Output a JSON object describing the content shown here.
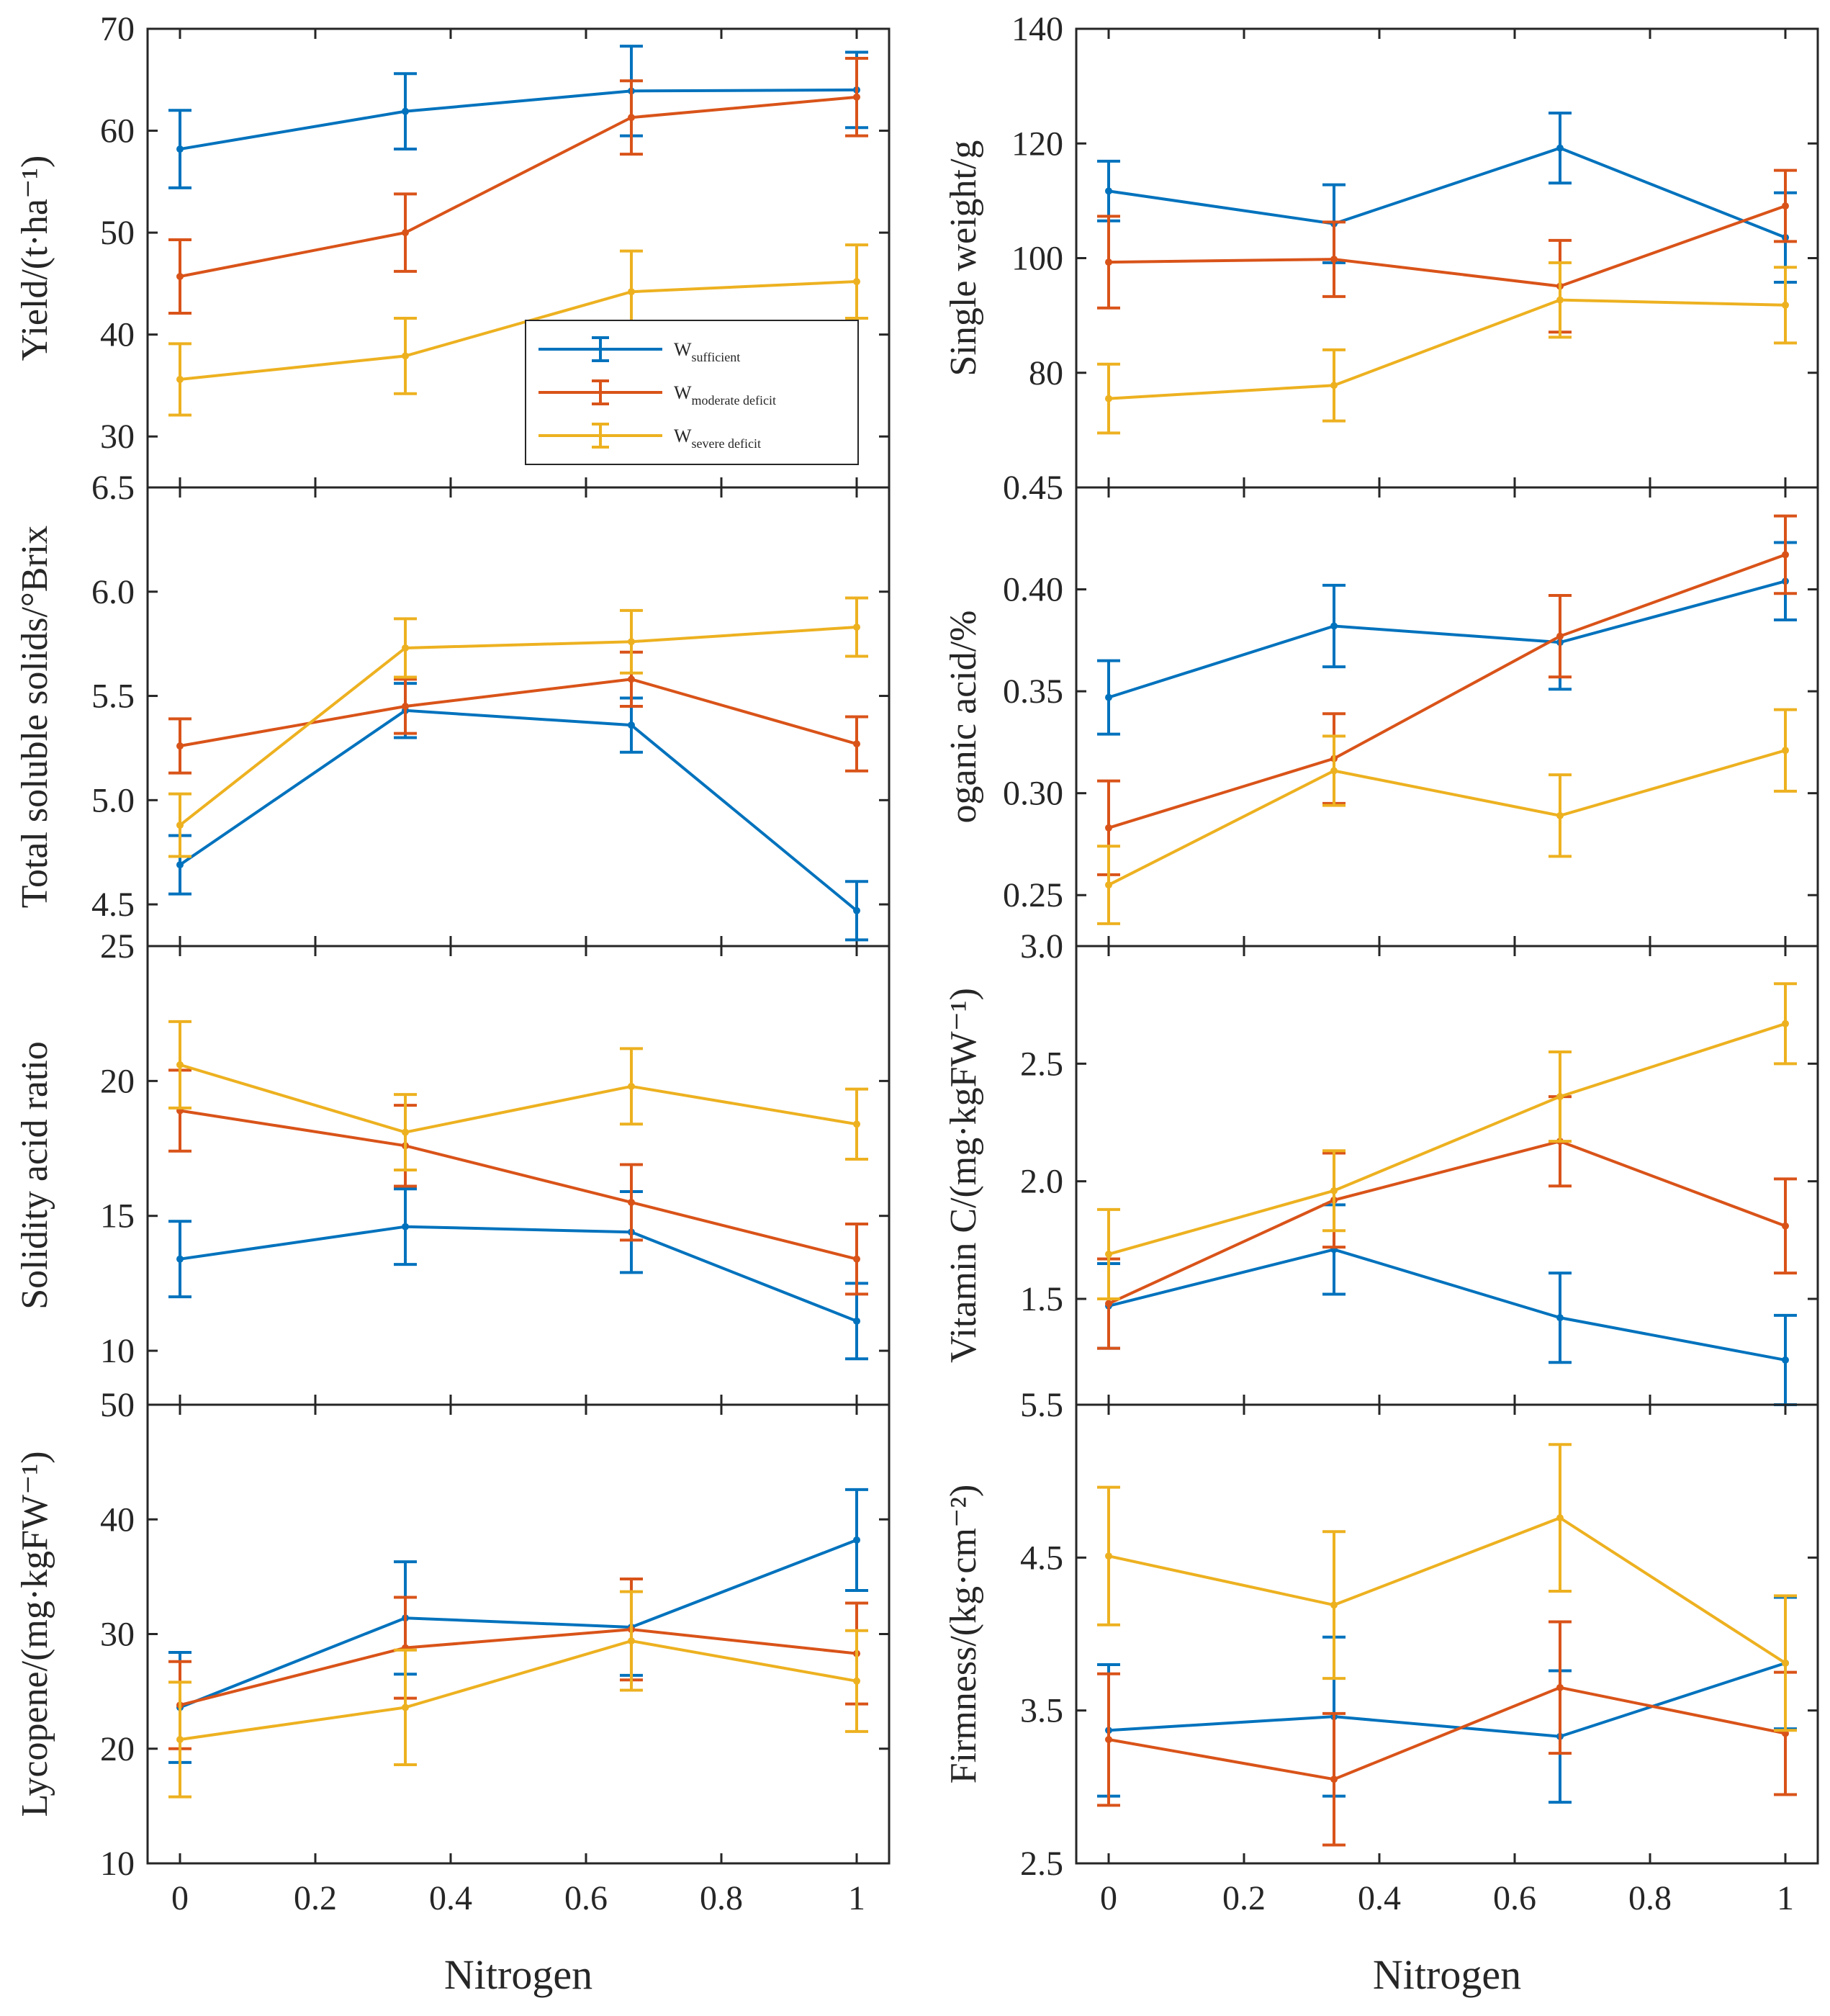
{
  "figure": {
    "x_label": "Nitrogen",
    "x_ticks": [
      0,
      0.2,
      0.4,
      0.6,
      0.8,
      1
    ],
    "colors": {
      "sufficient": "#0072bd",
      "moderate": "#d95319",
      "severe": "#edb120"
    },
    "legend": [
      {
        "key": "sufficient",
        "main": "W",
        "sub": "sufficient"
      },
      {
        "key": "moderate",
        "main": "W",
        "sub": "moderate deficit"
      },
      {
        "key": "severe",
        "main": "W",
        "sub": "severe deficit"
      }
    ]
  },
  "chart_data": [
    {
      "id": "yield",
      "type": "line",
      "ylabel": "Yield/(t·ha⁻¹)",
      "ylim": [
        25,
        70
      ],
      "y_ticks": [
        30,
        40,
        50,
        60,
        70
      ],
      "x": [
        0,
        0.333,
        0.667,
        1
      ],
      "series": [
        {
          "key": "sufficient",
          "values": [
            58.2,
            61.9,
            63.9,
            64.0
          ],
          "err": [
            3.8,
            3.7,
            4.4,
            3.7
          ]
        },
        {
          "key": "moderate",
          "values": [
            45.7,
            50.0,
            61.3,
            63.3
          ],
          "err": [
            3.6,
            3.8,
            3.6,
            3.8
          ]
        },
        {
          "key": "severe",
          "values": [
            35.6,
            37.9,
            44.2,
            45.2
          ],
          "err": [
            3.5,
            3.7,
            4.0,
            3.6
          ]
        }
      ]
    },
    {
      "id": "single_weight",
      "type": "line",
      "ylabel": "Single weight/g",
      "ylim": [
        60,
        140
      ],
      "y_ticks": [
        80,
        100,
        120,
        140
      ],
      "x": [
        0,
        0.333,
        0.667,
        1
      ],
      "series": [
        {
          "key": "sufficient",
          "values": [
            111.7,
            106.0,
            119.2,
            103.6
          ],
          "err": [
            5.2,
            6.8,
            6.1,
            7.8
          ]
        },
        {
          "key": "moderate",
          "values": [
            99.3,
            99.8,
            95.1,
            109.1
          ],
          "err": [
            8.0,
            6.5,
            8.0,
            6.2
          ]
        },
        {
          "key": "severe",
          "values": [
            75.5,
            77.8,
            92.7,
            91.8
          ],
          "err": [
            6.0,
            6.2,
            6.5,
            6.6
          ]
        }
      ]
    },
    {
      "id": "tss",
      "type": "line",
      "ylabel": "Total soluble solids/°Brix",
      "ylim": [
        4.3,
        6.5
      ],
      "y_ticks": [
        4.5,
        5.0,
        5.5,
        6.0,
        6.5
      ],
      "y_tick_labels": [
        "4.5",
        "5.0",
        "5.5",
        "6.0",
        "6.5"
      ],
      "x": [
        0,
        0.333,
        0.667,
        1
      ],
      "series": [
        {
          "key": "sufficient",
          "values": [
            4.69,
            5.43,
            5.36,
            4.47
          ],
          "err": [
            0.14,
            0.13,
            0.13,
            0.14
          ]
        },
        {
          "key": "moderate",
          "values": [
            5.26,
            5.45,
            5.58,
            5.27
          ],
          "err": [
            0.13,
            0.13,
            0.13,
            0.13
          ]
        },
        {
          "key": "severe",
          "values": [
            4.88,
            5.73,
            5.76,
            5.83
          ],
          "err": [
            0.15,
            0.14,
            0.15,
            0.14
          ]
        }
      ]
    },
    {
      "id": "organic_acid",
      "type": "line",
      "ylabel": "oganic acid/%",
      "ylim": [
        0.225,
        0.45
      ],
      "y_ticks": [
        0.25,
        0.3,
        0.35,
        0.4,
        0.45
      ],
      "y_tick_labels": [
        "0.25",
        "0.30",
        "0.35",
        "0.40",
        "0.45"
      ],
      "x": [
        0,
        0.333,
        0.667,
        1
      ],
      "series": [
        {
          "key": "sufficient",
          "values": [
            0.347,
            0.382,
            0.374,
            0.404
          ],
          "err": [
            0.018,
            0.02,
            0.023,
            0.019
          ]
        },
        {
          "key": "moderate",
          "values": [
            0.283,
            0.317,
            0.377,
            0.417
          ],
          "err": [
            0.023,
            0.022,
            0.02,
            0.019
          ]
        },
        {
          "key": "severe",
          "values": [
            0.255,
            0.311,
            0.289,
            0.321
          ],
          "err": [
            0.019,
            0.017,
            0.02,
            0.02
          ]
        }
      ]
    },
    {
      "id": "sa_ratio",
      "type": "line",
      "ylabel": "Solidity acid ratio",
      "ylim": [
        8,
        25
      ],
      "y_ticks": [
        10,
        15,
        20,
        25
      ],
      "x": [
        0,
        0.333,
        0.667,
        1
      ],
      "series": [
        {
          "key": "sufficient",
          "values": [
            13.4,
            14.6,
            14.4,
            11.1
          ],
          "err": [
            1.4,
            1.4,
            1.5,
            1.4
          ]
        },
        {
          "key": "moderate",
          "values": [
            18.9,
            17.6,
            15.5,
            13.4
          ],
          "err": [
            1.5,
            1.5,
            1.4,
            1.3
          ]
        },
        {
          "key": "severe",
          "values": [
            20.6,
            18.1,
            19.8,
            18.4
          ],
          "err": [
            1.6,
            1.4,
            1.4,
            1.3
          ]
        }
      ]
    },
    {
      "id": "vitamin_c",
      "type": "line",
      "ylabel": "Vitamin C/(mg·kgFW⁻¹)",
      "ylim": [
        1.05,
        3.0
      ],
      "y_ticks": [
        1.5,
        2.0,
        2.5,
        3.0
      ],
      "y_tick_labels": [
        "1.5",
        "2.0",
        "2.5",
        "3.0"
      ],
      "x": [
        0,
        0.333,
        0.667,
        1
      ],
      "series": [
        {
          "key": "sufficient",
          "values": [
            1.47,
            1.71,
            1.42,
            1.24
          ],
          "err": [
            0.18,
            0.19,
            0.19,
            0.19
          ]
        },
        {
          "key": "moderate",
          "values": [
            1.48,
            1.92,
            2.17,
            1.81
          ],
          "err": [
            0.19,
            0.2,
            0.19,
            0.2
          ]
        },
        {
          "key": "severe",
          "values": [
            1.69,
            1.96,
            2.36,
            2.67
          ],
          "err": [
            0.19,
            0.17,
            0.19,
            0.17
          ]
        }
      ]
    },
    {
      "id": "lycopene",
      "type": "line",
      "ylabel": "Lycopene/(mg·kgFW⁻¹)",
      "ylim": [
        10,
        50
      ],
      "y_ticks": [
        10,
        20,
        30,
        40,
        50
      ],
      "x": [
        0,
        0.333,
        0.667,
        1
      ],
      "series": [
        {
          "key": "sufficient",
          "values": [
            23.6,
            31.4,
            30.6,
            38.2
          ],
          "err": [
            4.8,
            4.9,
            4.2,
            4.4
          ]
        },
        {
          "key": "moderate",
          "values": [
            23.8,
            28.8,
            30.4,
            28.3
          ],
          "err": [
            3.8,
            4.4,
            4.4,
            4.4
          ]
        },
        {
          "key": "severe",
          "values": [
            20.8,
            23.6,
            29.4,
            25.9
          ],
          "err": [
            5.0,
            5.0,
            4.3,
            4.4
          ]
        }
      ]
    },
    {
      "id": "firmness",
      "type": "line",
      "ylabel": "Firmness/(kg·cm⁻²)",
      "ylim": [
        2.5,
        5.5
      ],
      "y_ticks": [
        2.5,
        3.5,
        4.5,
        5.5
      ],
      "y_tick_labels": [
        "2.5",
        "3.5",
        "4.5",
        "5.5"
      ],
      "x": [
        0,
        0.333,
        0.667,
        1
      ],
      "series": [
        {
          "key": "sufficient",
          "values": [
            3.37,
            3.46,
            3.33,
            3.81
          ],
          "err": [
            0.43,
            0.52,
            0.43,
            0.43
          ]
        },
        {
          "key": "moderate",
          "values": [
            3.31,
            3.05,
            3.65,
            3.35
          ],
          "err": [
            0.43,
            0.43,
            0.43,
            0.4
          ]
        },
        {
          "key": "severe",
          "values": [
            4.51,
            4.19,
            4.76,
            3.81
          ],
          "err": [
            0.45,
            0.48,
            0.48,
            0.44
          ]
        }
      ]
    }
  ]
}
